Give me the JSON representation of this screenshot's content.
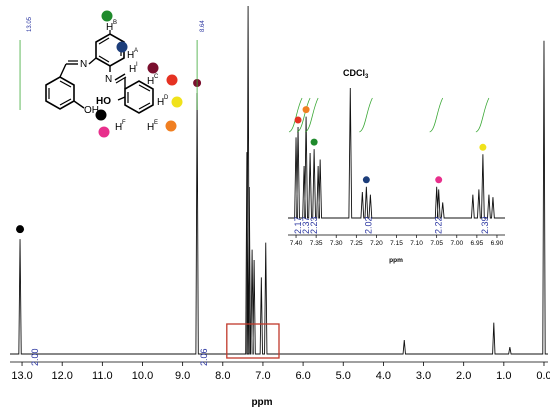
{
  "chart_data": {
    "type": "line",
    "xlabel": "ppm",
    "x_reversed": true,
    "xlim": [
      13.3,
      -0.1
    ],
    "x_ticks": [
      "13.0",
      "12.0",
      "11.0",
      "10.0",
      "9.0",
      "8.0",
      "7.0",
      "6.0",
      "5.0",
      "4.0",
      "3.0",
      "2.0",
      "1.0",
      "0.0"
    ],
    "top_labels": [
      "13.05",
      "8.64"
    ],
    "peaks": [
      {
        "ppm": 13.05,
        "rel_height": 0.33,
        "marker_color": "#000000"
      },
      {
        "ppm": 8.64,
        "rel_height": 0.75,
        "marker_color": "#7a0f2e"
      },
      {
        "ppm": 7.4,
        "rel_height": 0.58
      },
      {
        "ppm": 7.37,
        "rel_height": 1.0
      },
      {
        "ppm": 7.34,
        "rel_height": 0.48
      },
      {
        "ppm": 7.27,
        "rel_height": 0.3
      },
      {
        "ppm": 7.22,
        "rel_height": 0.27
      },
      {
        "ppm": 7.04,
        "rel_height": 0.22
      },
      {
        "ppm": 6.93,
        "rel_height": 0.32
      },
      {
        "ppm": 3.48,
        "rel_height": 0.04
      },
      {
        "ppm": 1.25,
        "rel_height": 0.09
      },
      {
        "ppm": 0.85,
        "rel_height": 0.02
      },
      {
        "ppm": 0.0,
        "rel_height": 0.9
      }
    ],
    "integrations": [
      {
        "ppm": 13.05,
        "label": "2.00"
      },
      {
        "ppm": 8.64,
        "label": "2.06"
      }
    ],
    "highlight_box": {
      "from_ppm": 7.9,
      "to_ppm": 6.6,
      "color": "#c0392b"
    },
    "inset": {
      "xlabel": "ppm",
      "xlim": [
        7.42,
        6.88
      ],
      "x_ticks": [
        "7.40",
        "7.35",
        "7.30",
        "7.25",
        "7.20",
        "7.15",
        "7.10",
        "7.05",
        "7.00",
        "6.95",
        "6.90"
      ],
      "solvent_label": "CDCl",
      "solvent_sub": "3",
      "solvent_ppm": 7.26,
      "integrations": [
        {
          "ppm": 7.395,
          "label": "2.17"
        },
        {
          "ppm": 7.375,
          "label": "2.37"
        },
        {
          "ppm": 7.355,
          "label": "2.23"
        },
        {
          "ppm": 7.22,
          "label": "2.02"
        },
        {
          "ppm": 7.045,
          "label": "2.22"
        },
        {
          "ppm": 6.93,
          "label": "2.39"
        }
      ],
      "markers": [
        {
          "ppm": 7.395,
          "rel_height": 0.7,
          "color": "#e53222"
        },
        {
          "ppm": 7.375,
          "rel_height": 0.78,
          "color": "#f07f21"
        },
        {
          "ppm": 7.355,
          "rel_height": 0.53,
          "color": "#1f8a2c"
        },
        {
          "ppm": 7.225,
          "rel_height": 0.24,
          "color": "#1c3d7a"
        },
        {
          "ppm": 7.045,
          "rel_height": 0.24,
          "color": "#e82f8c"
        },
        {
          "ppm": 6.935,
          "rel_height": 0.49,
          "color": "#f0e21b"
        }
      ]
    },
    "structure": {
      "labels": {
        "hb": "H",
        "hb_sup": "B",
        "ha": "H",
        "ha_sup": "A",
        "hi": "H",
        "hi_sup": "I",
        "hc": "H",
        "hc_sup": "C",
        "hd": "H",
        "hd_sup": "D",
        "he": "H",
        "he_sup": "E",
        "hf": "H",
        "hf_sup": "F",
        "ho": "HO",
        "oh": "OH",
        "n1": "N",
        "n2": "N"
      },
      "marker_colors": {
        "hb": "#1f8a2c",
        "ha": "#1c3d7a",
        "hi": "#7a0f2e",
        "hc": "#e53222",
        "hd": "#f0e21b",
        "he": "#f07f21",
        "hf": "#e82f8c",
        "ho": "#000000"
      }
    }
  }
}
